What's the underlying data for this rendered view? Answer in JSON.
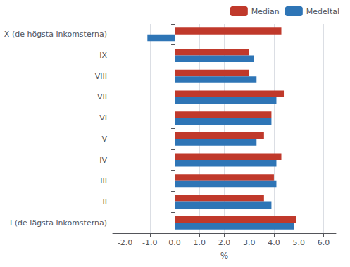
{
  "chart_data": {
    "type": "bar",
    "orientation": "horizontal",
    "categories": [
      "I (de lägsta inkomsterna)",
      "II",
      "III",
      "IV",
      "V",
      "VI",
      "VII",
      "VIII",
      "IX",
      "X (de högsta inkomsterna)"
    ],
    "series": [
      {
        "name": "Median",
        "color": "#c0392b",
        "values": [
          4.9,
          3.6,
          4.0,
          4.3,
          3.6,
          3.9,
          4.4,
          3.0,
          3.0,
          4.3
        ]
      },
      {
        "name": "Medeltal",
        "color": "#2e75b6",
        "values": [
          4.8,
          3.9,
          4.1,
          4.1,
          3.3,
          3.9,
          4.1,
          3.3,
          3.2,
          -1.1
        ]
      }
    ],
    "xlabel": "%",
    "xlim": [
      -2.5,
      6.5
    ],
    "xticks": [
      {
        "value": -2.0,
        "label": "-2.0"
      },
      {
        "value": -1.0,
        "label": "-1.0"
      },
      {
        "value": 0.0,
        "label": "0.0"
      },
      {
        "value": 1.0,
        "label": "1.0"
      },
      {
        "value": 2.0,
        "label": "2.0"
      },
      {
        "value": 3.0,
        "label": "3.0"
      },
      {
        "value": 4.0,
        "label": "4.0"
      },
      {
        "value": 5.0,
        "label": "5.0"
      },
      {
        "value": 6.0,
        "label": "6.0"
      }
    ],
    "grid": true,
    "legend": "upper right"
  }
}
